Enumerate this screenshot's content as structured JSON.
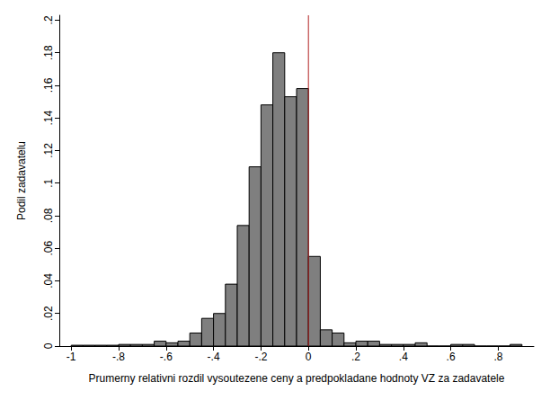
{
  "chart_data": {
    "type": "histogram",
    "x_label": "Prumerny relativni rozdil vysoutezene ceny a predpokladane hodnoty VZ za zadavatele",
    "y_label": "Podil zadavatelu",
    "bins": [
      -1,
      -0.95,
      -0.9,
      -0.85,
      -0.8,
      -0.75,
      -0.7,
      -0.65,
      -0.6,
      -0.55,
      -0.5,
      -0.45,
      -0.4,
      -0.35,
      -0.3,
      -0.25,
      -0.2,
      -0.15,
      -0.1,
      -0.05,
      0,
      0.05,
      0.1,
      0.15,
      0.2,
      0.25,
      0.3,
      0.35,
      0.4,
      0.45,
      0.5,
      0.55,
      0.6,
      0.65,
      0.7,
      0.75,
      0.8,
      0.85,
      0.9
    ],
    "values": [
      0.0005,
      0.0005,
      0.0005,
      0.0005,
      0.001,
      0.001,
      0.001,
      0.003,
      0.002,
      0.003,
      0.008,
      0.017,
      0.02,
      0.038,
      0.074,
      0.11,
      0.148,
      0.18,
      0.153,
      0.158,
      0.055,
      0.01,
      0.008,
      0.002,
      0.003,
      0.003,
      0.001,
      0.001,
      0.001,
      0.002,
      0,
      0,
      0.001,
      0.001,
      0,
      0,
      0,
      0.001
    ],
    "color": "#7f7f7f",
    "reference_line": {
      "x": 0,
      "color": "#b22222"
    },
    "xlim": [
      -1.05,
      0.95
    ],
    "xticks": [
      -1,
      {
        "value": -0.8,
        "label": "-.8"
      },
      {
        "value": -0.6,
        "label": "-.6"
      },
      {
        "value": -0.4,
        "label": "-.4"
      },
      {
        "value": -0.2,
        "label": "-.2"
      },
      0,
      {
        "value": 0.2,
        "label": ".2"
      },
      {
        "value": 0.4,
        "label": ".4"
      },
      {
        "value": 0.6,
        "label": ".6"
      },
      {
        "value": 0.8,
        "label": ".8"
      }
    ],
    "ylim": [
      0,
      0.203
    ],
    "yticks": [
      0,
      {
        "value": 0.02,
        "label": ".02"
      },
      {
        "value": 0.04,
        "label": ".04"
      },
      {
        "value": 0.06,
        "label": ".06"
      },
      {
        "value": 0.08,
        "label": ".08"
      },
      {
        "value": 0.1,
        "label": ".1"
      },
      {
        "value": 0.12,
        "label": ".12"
      },
      {
        "value": 0.14,
        "label": ".14"
      },
      {
        "value": 0.16,
        "label": ".16"
      },
      {
        "value": 0.18,
        "label": ".18"
      },
      {
        "value": 0.2,
        "label": ".2"
      }
    ],
    "grid": false
  }
}
